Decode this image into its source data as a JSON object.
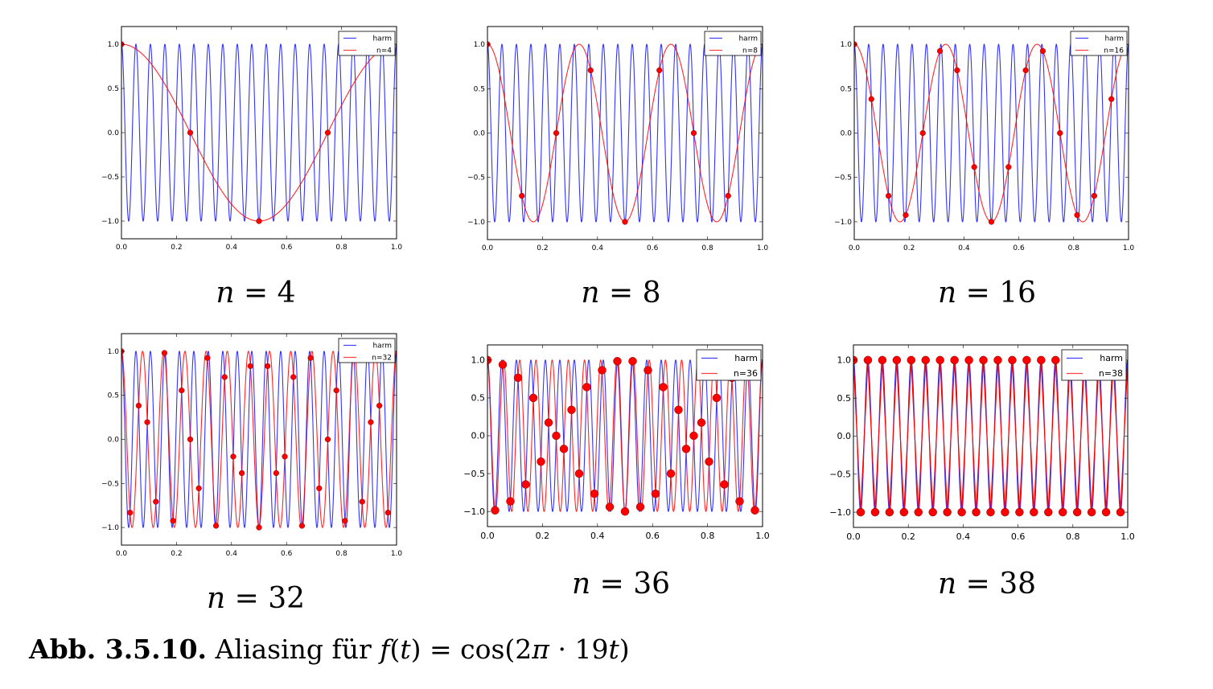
{
  "figure_caption": {
    "label": "Abb.  3.5.10.",
    "text": "Aliasing für",
    "formula": "f(t) = cos(2π · 19t)"
  },
  "colors": {
    "harm": "#0000ff",
    "sampled": "#ff0000",
    "marker": "#ff0000",
    "axes": "#000000",
    "background": "#ffffff"
  },
  "chart_data": [
    {
      "type": "line",
      "title": "n = 4",
      "caption": "n = 4",
      "signal_frequency": 19,
      "n": 4,
      "alias_frequency": 1,
      "xlim": [
        0.0,
        1.0
      ],
      "ylim": [
        -1.2,
        1.2
      ],
      "xticks": [
        "0.0",
        "0.2",
        "0.4",
        "0.6",
        "0.8",
        "1.0"
      ],
      "yticks": [
        "-1.0",
        "-0.5",
        "0.0",
        "0.5",
        "1.0"
      ],
      "legend": [
        "harm",
        "n=4"
      ],
      "legend_position": "top-right",
      "series": [
        {
          "name": "harm",
          "function": "cos(2π·19t)"
        },
        {
          "name": "n=4",
          "function": "cos(2π·1t)",
          "samples_x": [
            0,
            0.25,
            0.5,
            0.75
          ],
          "samples_y": [
            1.0,
            0.0,
            -1.0,
            0.0
          ]
        }
      ]
    },
    {
      "type": "line",
      "title": "n = 8",
      "caption": "n = 8",
      "signal_frequency": 19,
      "n": 8,
      "alias_frequency": 3,
      "xlim": [
        0.0,
        1.0
      ],
      "ylim": [
        -1.2,
        1.2
      ],
      "xticks": [
        "0.0",
        "0.2",
        "0.4",
        "0.6",
        "0.8",
        "1.0"
      ],
      "yticks": [
        "-1.0",
        "-0.5",
        "0.0",
        "0.5",
        "1.0"
      ],
      "legend": [
        "harm",
        "n=8"
      ],
      "legend_position": "top-right",
      "series": [
        {
          "name": "harm",
          "function": "cos(2π·19t)"
        },
        {
          "name": "n=8",
          "function": "cos(2π·3t)",
          "samples_x": [
            0,
            0.125,
            0.25,
            0.375,
            0.5,
            0.625,
            0.75,
            0.875
          ],
          "samples_y": [
            1.0,
            -0.71,
            0.0,
            0.71,
            -1.0,
            0.71,
            0.0,
            -0.71
          ]
        }
      ]
    },
    {
      "type": "line",
      "title": "n = 16",
      "caption": "n = 16",
      "signal_frequency": 19,
      "n": 16,
      "alias_frequency": 3,
      "xlim": [
        0.0,
        1.0
      ],
      "ylim": [
        -1.2,
        1.2
      ],
      "xticks": [
        "0.0",
        "0.2",
        "0.4",
        "0.6",
        "0.8",
        "1.0"
      ],
      "yticks": [
        "-1.0",
        "-0.5",
        "0.0",
        "0.5",
        "1.0"
      ],
      "legend": [
        "harm",
        "n=16"
      ],
      "legend_position": "top-right",
      "series": [
        {
          "name": "harm",
          "function": "cos(2π·19t)"
        },
        {
          "name": "n=16",
          "function": "cos(2π·3t)",
          "sample_count": 16
        }
      ]
    },
    {
      "type": "line",
      "title": "n = 32",
      "caption": "n = 32",
      "signal_frequency": 19,
      "n": 32,
      "alias_frequency": 13,
      "xlim": [
        0.0,
        1.0
      ],
      "ylim": [
        -1.2,
        1.2
      ],
      "xticks": [
        "0.0",
        "0.2",
        "0.4",
        "0.6",
        "0.8",
        "1.0"
      ],
      "yticks": [
        "-1.0",
        "-0.5",
        "0.0",
        "0.5",
        "1.0"
      ],
      "legend": [
        "harm",
        "n=32"
      ],
      "legend_position": "top-right",
      "series": [
        {
          "name": "harm",
          "function": "cos(2π·19t)"
        },
        {
          "name": "n=32",
          "function": "cos(2π·13t)",
          "sample_count": 32
        }
      ]
    },
    {
      "type": "line",
      "title": "n = 36",
      "caption": "n = 36",
      "signal_frequency": 19,
      "n": 36,
      "alias_frequency": 17,
      "xlim": [
        0.0,
        1.0
      ],
      "ylim": [
        -1.2,
        1.2
      ],
      "xticks": [
        "0.0",
        "0.2",
        "0.4",
        "0.6",
        "0.8",
        "1.0"
      ],
      "yticks": [
        "-1.0",
        "-0.5",
        "0.0",
        "0.5",
        "1.0"
      ],
      "legend": [
        "harm",
        "n=36"
      ],
      "legend_position": "top-right",
      "series": [
        {
          "name": "harm",
          "function": "cos(2π·19t)"
        },
        {
          "name": "n=36",
          "function": "cos(2π·17t)",
          "sample_count": 36
        }
      ]
    },
    {
      "type": "line",
      "title": "n = 38",
      "caption": "n = 38",
      "signal_frequency": 19,
      "n": 38,
      "alias_frequency": 19,
      "polyline_through_samples": true,
      "xlim": [
        0.0,
        1.0
      ],
      "ylim": [
        -1.2,
        1.2
      ],
      "xticks": [
        "0.0",
        "0.2",
        "0.4",
        "0.6",
        "0.8",
        "1.0"
      ],
      "yticks": [
        "-1.0",
        "-0.5",
        "0.0",
        "0.5",
        "1.0"
      ],
      "legend": [
        "harm",
        "n=38"
      ],
      "legend_position": "top-right",
      "series": [
        {
          "name": "harm",
          "function": "cos(2π·19t)"
        },
        {
          "name": "n=38",
          "function": "samples of cos(2π·19t) joined",
          "sample_count": 38
        }
      ]
    }
  ]
}
